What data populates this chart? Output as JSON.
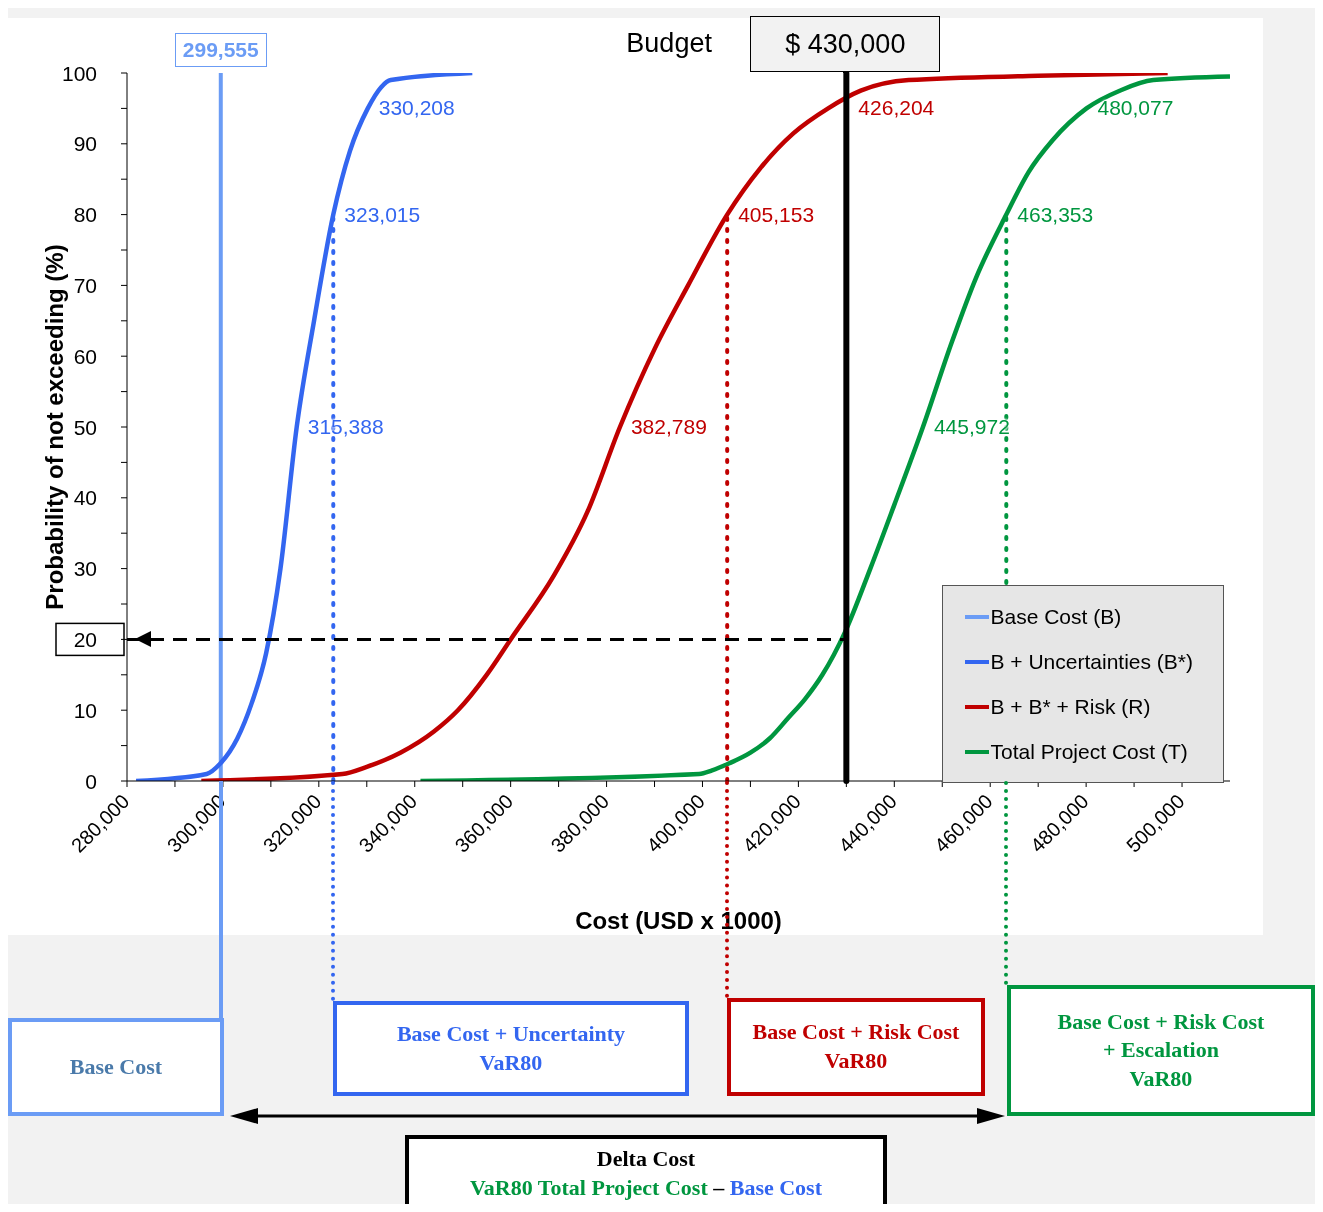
{
  "chart_data": {
    "type": "line",
    "xlabel": "Cost (USD x 1000)",
    "ylabel": "Probability of not exceeding (%)",
    "xlim": [
      280000,
      510000
    ],
    "xticks": [
      {
        "value": 280000,
        "label": "280,000"
      },
      {
        "value": 290000,
        "label": null
      },
      {
        "value": 300000,
        "label": "300,000"
      },
      {
        "value": 310000,
        "label": null
      },
      {
        "value": 320000,
        "label": "320,000"
      },
      {
        "value": 330000,
        "label": null
      },
      {
        "value": 340000,
        "label": "340,000"
      },
      {
        "value": 350000,
        "label": null
      },
      {
        "value": 360000,
        "label": "360,000"
      },
      {
        "value": 370000,
        "label": null
      },
      {
        "value": 380000,
        "label": "380,000"
      },
      {
        "value": 390000,
        "label": null
      },
      {
        "value": 400000,
        "label": "400,000"
      },
      {
        "value": 410000,
        "label": null
      },
      {
        "value": 420000,
        "label": "420,000"
      },
      {
        "value": 430000,
        "label": null
      },
      {
        "value": 440000,
        "label": "440,000"
      },
      {
        "value": 450000,
        "label": null
      },
      {
        "value": 460000,
        "label": "460,000"
      },
      {
        "value": 470000,
        "label": null
      },
      {
        "value": 480000,
        "label": "480,000"
      },
      {
        "value": 490000,
        "label": null
      },
      {
        "value": 500000,
        "label": "500,000"
      }
    ],
    "ylim": [
      0,
      100
    ],
    "yticks": [
      0,
      {
        "value": 5,
        "label": null
      },
      10,
      {
        "value": 15,
        "label": null
      },
      20,
      {
        "value": 25,
        "label": null
      },
      30,
      {
        "value": 35,
        "label": null
      },
      40,
      {
        "value": 45,
        "label": null
      },
      50,
      {
        "value": 55,
        "label": null
      },
      60,
      {
        "value": 65,
        "label": null
      },
      70,
      {
        "value": 75,
        "label": null
      },
      80,
      {
        "value": 85,
        "label": null
      },
      90,
      {
        "value": 95,
        "label": null
      },
      100
    ],
    "legend": "bottom right",
    "marker": "none",
    "line_style": "solid",
    "series": [
      {
        "name": "Base Cost (B)",
        "color": "#6b9cf5",
        "x": [
          299555,
          299555
        ],
        "values": [
          0,
          100
        ]
      },
      {
        "name": "B + Uncertainties (B*)",
        "color": "#3366f0",
        "x": [
          281900,
          296600,
          299500,
          303000,
          306000,
          309000,
          312000,
          315388,
          319000,
          323015,
          326500,
          330208,
          333000,
          335000,
          352000
        ],
        "values": [
          0,
          1,
          2.5,
          6,
          11,
          18,
          30,
          50,
          65,
          80,
          89,
          95,
          98,
          99,
          100
        ]
      },
      {
        "name": "B + B* + Risk (R)",
        "color": "#c00000",
        "x": [
          295500,
          324900,
          330000,
          337000,
          344000,
          349000,
          355000,
          360000,
          369000,
          376000,
          382789,
          390000,
          397000,
          405153,
          412000,
          419000,
          426204,
          433000,
          443000,
          470000,
          497000
        ],
        "values": [
          0,
          1,
          2,
          4,
          7,
          10,
          15,
          20,
          29,
          38,
          50,
          61,
          70,
          80,
          86.5,
          91.5,
          95,
          97.5,
          99,
          99.6,
          100
        ]
      },
      {
        "name": "Total Project Cost (T)",
        "color": "#00963f",
        "x": [
          341200,
          399300,
          402000,
          405600,
          410000,
          414000,
          418000,
          421300,
          425000,
          429700,
          435000,
          440000,
          445972,
          452000,
          457000,
          463353,
          468000,
          473000,
          480077,
          487000,
          494000,
          510000
        ],
        "values": [
          0,
          1,
          1.5,
          2.5,
          4,
          6,
          9,
          11.5,
          15,
          21,
          30,
          39,
          50,
          62,
          71,
          80,
          86,
          90.5,
          95,
          97.5,
          99,
          99.5
        ]
      }
    ],
    "ref_lines": [
      {
        "axis": "x",
        "value": 323015,
        "color": "#3366f0",
        "line_style": "dotted"
      },
      {
        "axis": "x",
        "value": 405153,
        "color": "#c00000",
        "line_style": "dotted"
      },
      {
        "axis": "x",
        "value": 463353,
        "color": "#00963f",
        "line_style": "dotted"
      },
      {
        "axis": "x",
        "value": 430000,
        "label": "$ 430,000",
        "color": "#000000",
        "line_style": "solid"
      },
      {
        "axis": "y",
        "value": 20,
        "color": "#000000",
        "line_style": "dashed"
      }
    ],
    "annotations": [
      "Budget",
      "Base Cost",
      "Base Cost + Uncertainty\nVaR80",
      "Base Cost + Risk Cost\nVaR80",
      "Base Cost + Risk Cost\n+ Escalation\nVaR80",
      "Delta Cost",
      "VaR80 Total Project Cost",
      "–",
      "Base Cost",
      {
        "text": "299,555",
        "x": 299555,
        "y": 100
      },
      {
        "text": "315,388",
        "x": 315388,
        "y": 50
      },
      {
        "text": "323,015",
        "x": 323015,
        "y": 80
      },
      {
        "text": "330,208",
        "x": 330208,
        "y": 95
      },
      {
        "text": "382,789",
        "x": 382789,
        "y": 50
      },
      {
        "text": "405,153",
        "x": 405153,
        "y": 80
      },
      {
        "text": "426,204",
        "x": 426204,
        "y": 95
      },
      {
        "text": "445,972",
        "x": 445972,
        "y": 50
      },
      {
        "text": "463,353",
        "x": 463353,
        "y": 80
      },
      {
        "text": "480,077",
        "x": 480077,
        "y": 95
      }
    ]
  }
}
